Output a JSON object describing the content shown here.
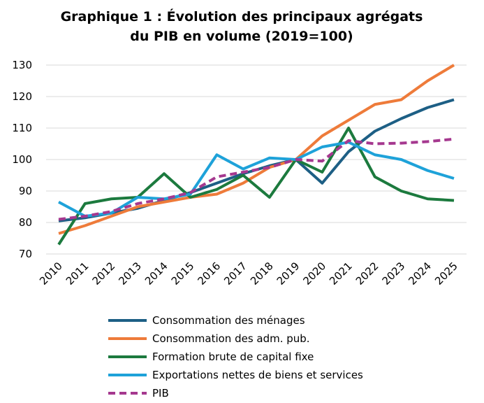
{
  "chart_data": {
    "type": "line",
    "title": [
      "Graphique 1 : Évolution des principaux agrégats",
      "du PIB en volume (2019=100)"
    ],
    "categories": [
      "2010",
      "2011",
      "2012",
      "2013",
      "2014",
      "2015",
      "2016",
      "2017",
      "2018",
      "2019",
      "2020",
      "2021",
      "2022",
      "2023",
      "2024",
      "2025"
    ],
    "ylim": [
      70,
      130
    ],
    "yticks": [
      70,
      80,
      90,
      100,
      110,
      120,
      130
    ],
    "grid": true,
    "legend": "bottom",
    "series": [
      {
        "name": "Consommation des ménages",
        "color": "#1d5f85",
        "dashed": false,
        "values": [
          80.5,
          81.5,
          83,
          84.5,
          87,
          89.5,
          92.5,
          95.5,
          98,
          100,
          92.5,
          102.5,
          109,
          113,
          116.5,
          119
        ]
      },
      {
        "name": "Consommation des adm. pub.",
        "color": "#ee7b3a",
        "dashed": false,
        "values": [
          76.5,
          79,
          82,
          85,
          86.5,
          88,
          89,
          92.5,
          97.5,
          100,
          107.5,
          112.5,
          117.5,
          119,
          125,
          130
        ]
      },
      {
        "name": "Formation brute de capital fixe",
        "color": "#1c7a3e",
        "dashed": false,
        "values": [
          73,
          86,
          87.5,
          88,
          95.5,
          88,
          90.5,
          95,
          88,
          100,
          96,
          110,
          94.5,
          90,
          87.5,
          87
        ]
      },
      {
        "name": "Exportations nettes de biens et services",
        "color": "#1ea2d9",
        "dashed": false,
        "values": [
          86.5,
          82,
          83,
          88,
          87.5,
          89,
          101.5,
          97,
          100.5,
          100,
          104,
          105.5,
          101.5,
          100,
          96.5,
          94
        ]
      },
      {
        "name": "PIB",
        "color": "#a5388f",
        "dashed": true,
        "values": [
          81,
          82,
          83.5,
          86,
          87.5,
          89.5,
          94.5,
          96,
          97.5,
          100,
          99.5,
          106,
          105,
          105.2,
          105.7,
          106.5
        ]
      }
    ]
  }
}
